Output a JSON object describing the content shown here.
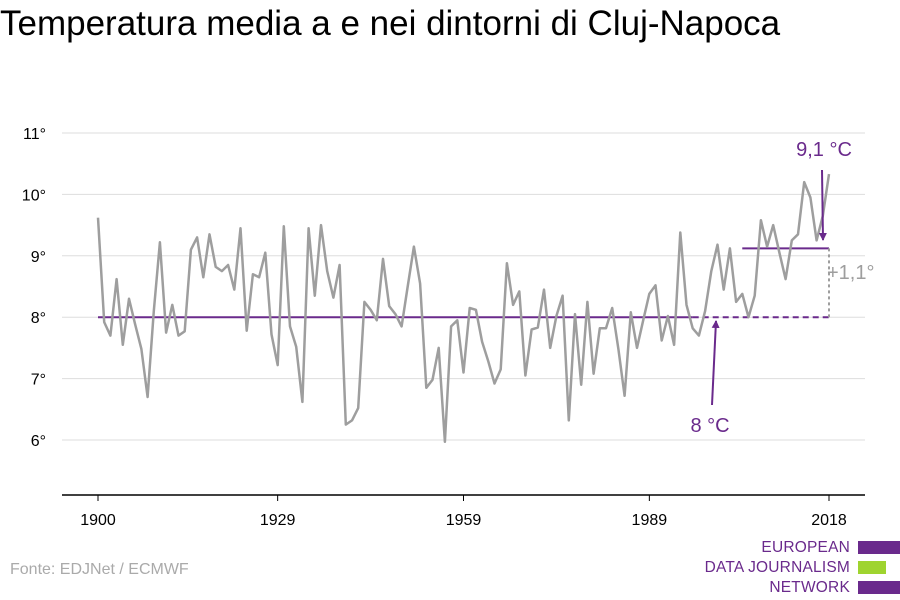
{
  "title": "Temperatura media a e nei dintorni di Cluj-Napoca",
  "source": "Fonte: EDJNet / ECMWF",
  "logo": {
    "lines": [
      "EUROPEAN",
      "DATA JOURNALISM",
      "NETWORK"
    ],
    "colors": [
      "#6a2a8c",
      "#9fd42f",
      "#6a2a8c"
    ]
  },
  "colors": {
    "series": "#9e9e9e",
    "accent": "#6a2a8c",
    "grid": "#dddddd",
    "axis": "#000000",
    "delta": "#9e9e9e"
  },
  "chart_data": {
    "type": "line",
    "title": "Temperatura media a e nei dintorni di Cluj-Napoca",
    "xlabel": "",
    "ylabel": "",
    "xlim": [
      1900,
      2018
    ],
    "ylim": [
      5,
      11
    ],
    "x_ticks": [
      1900,
      1929,
      1959,
      1989,
      2018
    ],
    "x_tick_labels": [
      "1900",
      "1929",
      "1959",
      "1989",
      "2018"
    ],
    "y_ticks": [
      6,
      7,
      8,
      9,
      10,
      11
    ],
    "y_tick_labels": [
      "6°",
      "7°",
      "8°",
      "9°",
      "10°",
      "11°"
    ],
    "grid": true,
    "series": [
      {
        "x": [
          1900,
          1901,
          1902,
          1903,
          1904,
          1905,
          1906,
          1907,
          1908,
          1909,
          1910,
          1911,
          1912,
          1913,
          1914,
          1915,
          1916,
          1917,
          1918,
          1919,
          1920,
          1921,
          1922,
          1923,
          1924,
          1925,
          1926,
          1927,
          1928,
          1929,
          1930,
          1931,
          1932,
          1933,
          1934,
          1935,
          1936,
          1937,
          1938,
          1939,
          1940,
          1941,
          1942,
          1943,
          1944,
          1945,
          1946,
          1947,
          1948,
          1949,
          1950,
          1951,
          1952,
          1953,
          1954,
          1955,
          1956,
          1957,
          1958,
          1959,
          1960,
          1961,
          1962,
          1963,
          1964,
          1965,
          1966,
          1967,
          1968,
          1969,
          1970,
          1971,
          1972,
          1973,
          1974,
          1975,
          1976,
          1977,
          1978,
          1979,
          1980,
          1981,
          1982,
          1983,
          1984,
          1985,
          1986,
          1987,
          1988,
          1989,
          1990,
          1991,
          1992,
          1993,
          1994,
          1995,
          1996,
          1997,
          1998,
          1999,
          2000,
          2001,
          2002,
          2003,
          2004,
          2005,
          2006,
          2007,
          2008,
          2009,
          2010,
          2011,
          2012,
          2013,
          2014,
          2015,
          2016,
          2017,
          2018
        ],
        "values": [
          9.62,
          7.92,
          7.7,
          8.62,
          7.55,
          8.3,
          7.88,
          7.48,
          6.7,
          8.1,
          9.22,
          7.75,
          8.2,
          7.7,
          7.77,
          9.1,
          9.3,
          8.65,
          9.35,
          8.82,
          8.75,
          8.85,
          8.45,
          9.45,
          7.78,
          8.7,
          8.65,
          9.05,
          7.72,
          7.22,
          9.48,
          7.85,
          7.52,
          6.62,
          9.45,
          8.35,
          9.5,
          8.75,
          8.32,
          8.85,
          6.25,
          6.32,
          6.52,
          8.25,
          8.12,
          7.95,
          8.95,
          8.18,
          8.05,
          7.85,
          8.5,
          9.15,
          8.55,
          6.85,
          6.98,
          7.5,
          5.97,
          7.85,
          7.95,
          7.1,
          8.15,
          8.12,
          7.6,
          7.28,
          6.92,
          7.15,
          8.88,
          8.2,
          8.42,
          7.05,
          7.8,
          7.83,
          8.45,
          7.5,
          8.02,
          8.35,
          6.32,
          8.05,
          6.9,
          8.25,
          7.08,
          7.82,
          7.82,
          8.15,
          7.48,
          6.72,
          8.08,
          7.5,
          7.95,
          8.38,
          8.52,
          7.62,
          8.02,
          7.55,
          9.38,
          8.2,
          7.82,
          7.7,
          8.1,
          8.75,
          9.18,
          8.45,
          9.12,
          8.25,
          8.38,
          8.0,
          8.35,
          9.58,
          9.15,
          9.5,
          9.05,
          8.62,
          9.25,
          9.35,
          10.2,
          9.95,
          9.25,
          9.65,
          10.33
        ]
      }
    ],
    "annotations": {
      "baseline": {
        "value": 8.0,
        "from": 1900,
        "solid_to": 1996,
        "to": 2018,
        "label": "8 °C"
      },
      "recent": {
        "value": 9.12,
        "from": 2004,
        "to": 2018,
        "label": "9,1 °C"
      },
      "delta_label": "+1,1°"
    }
  }
}
